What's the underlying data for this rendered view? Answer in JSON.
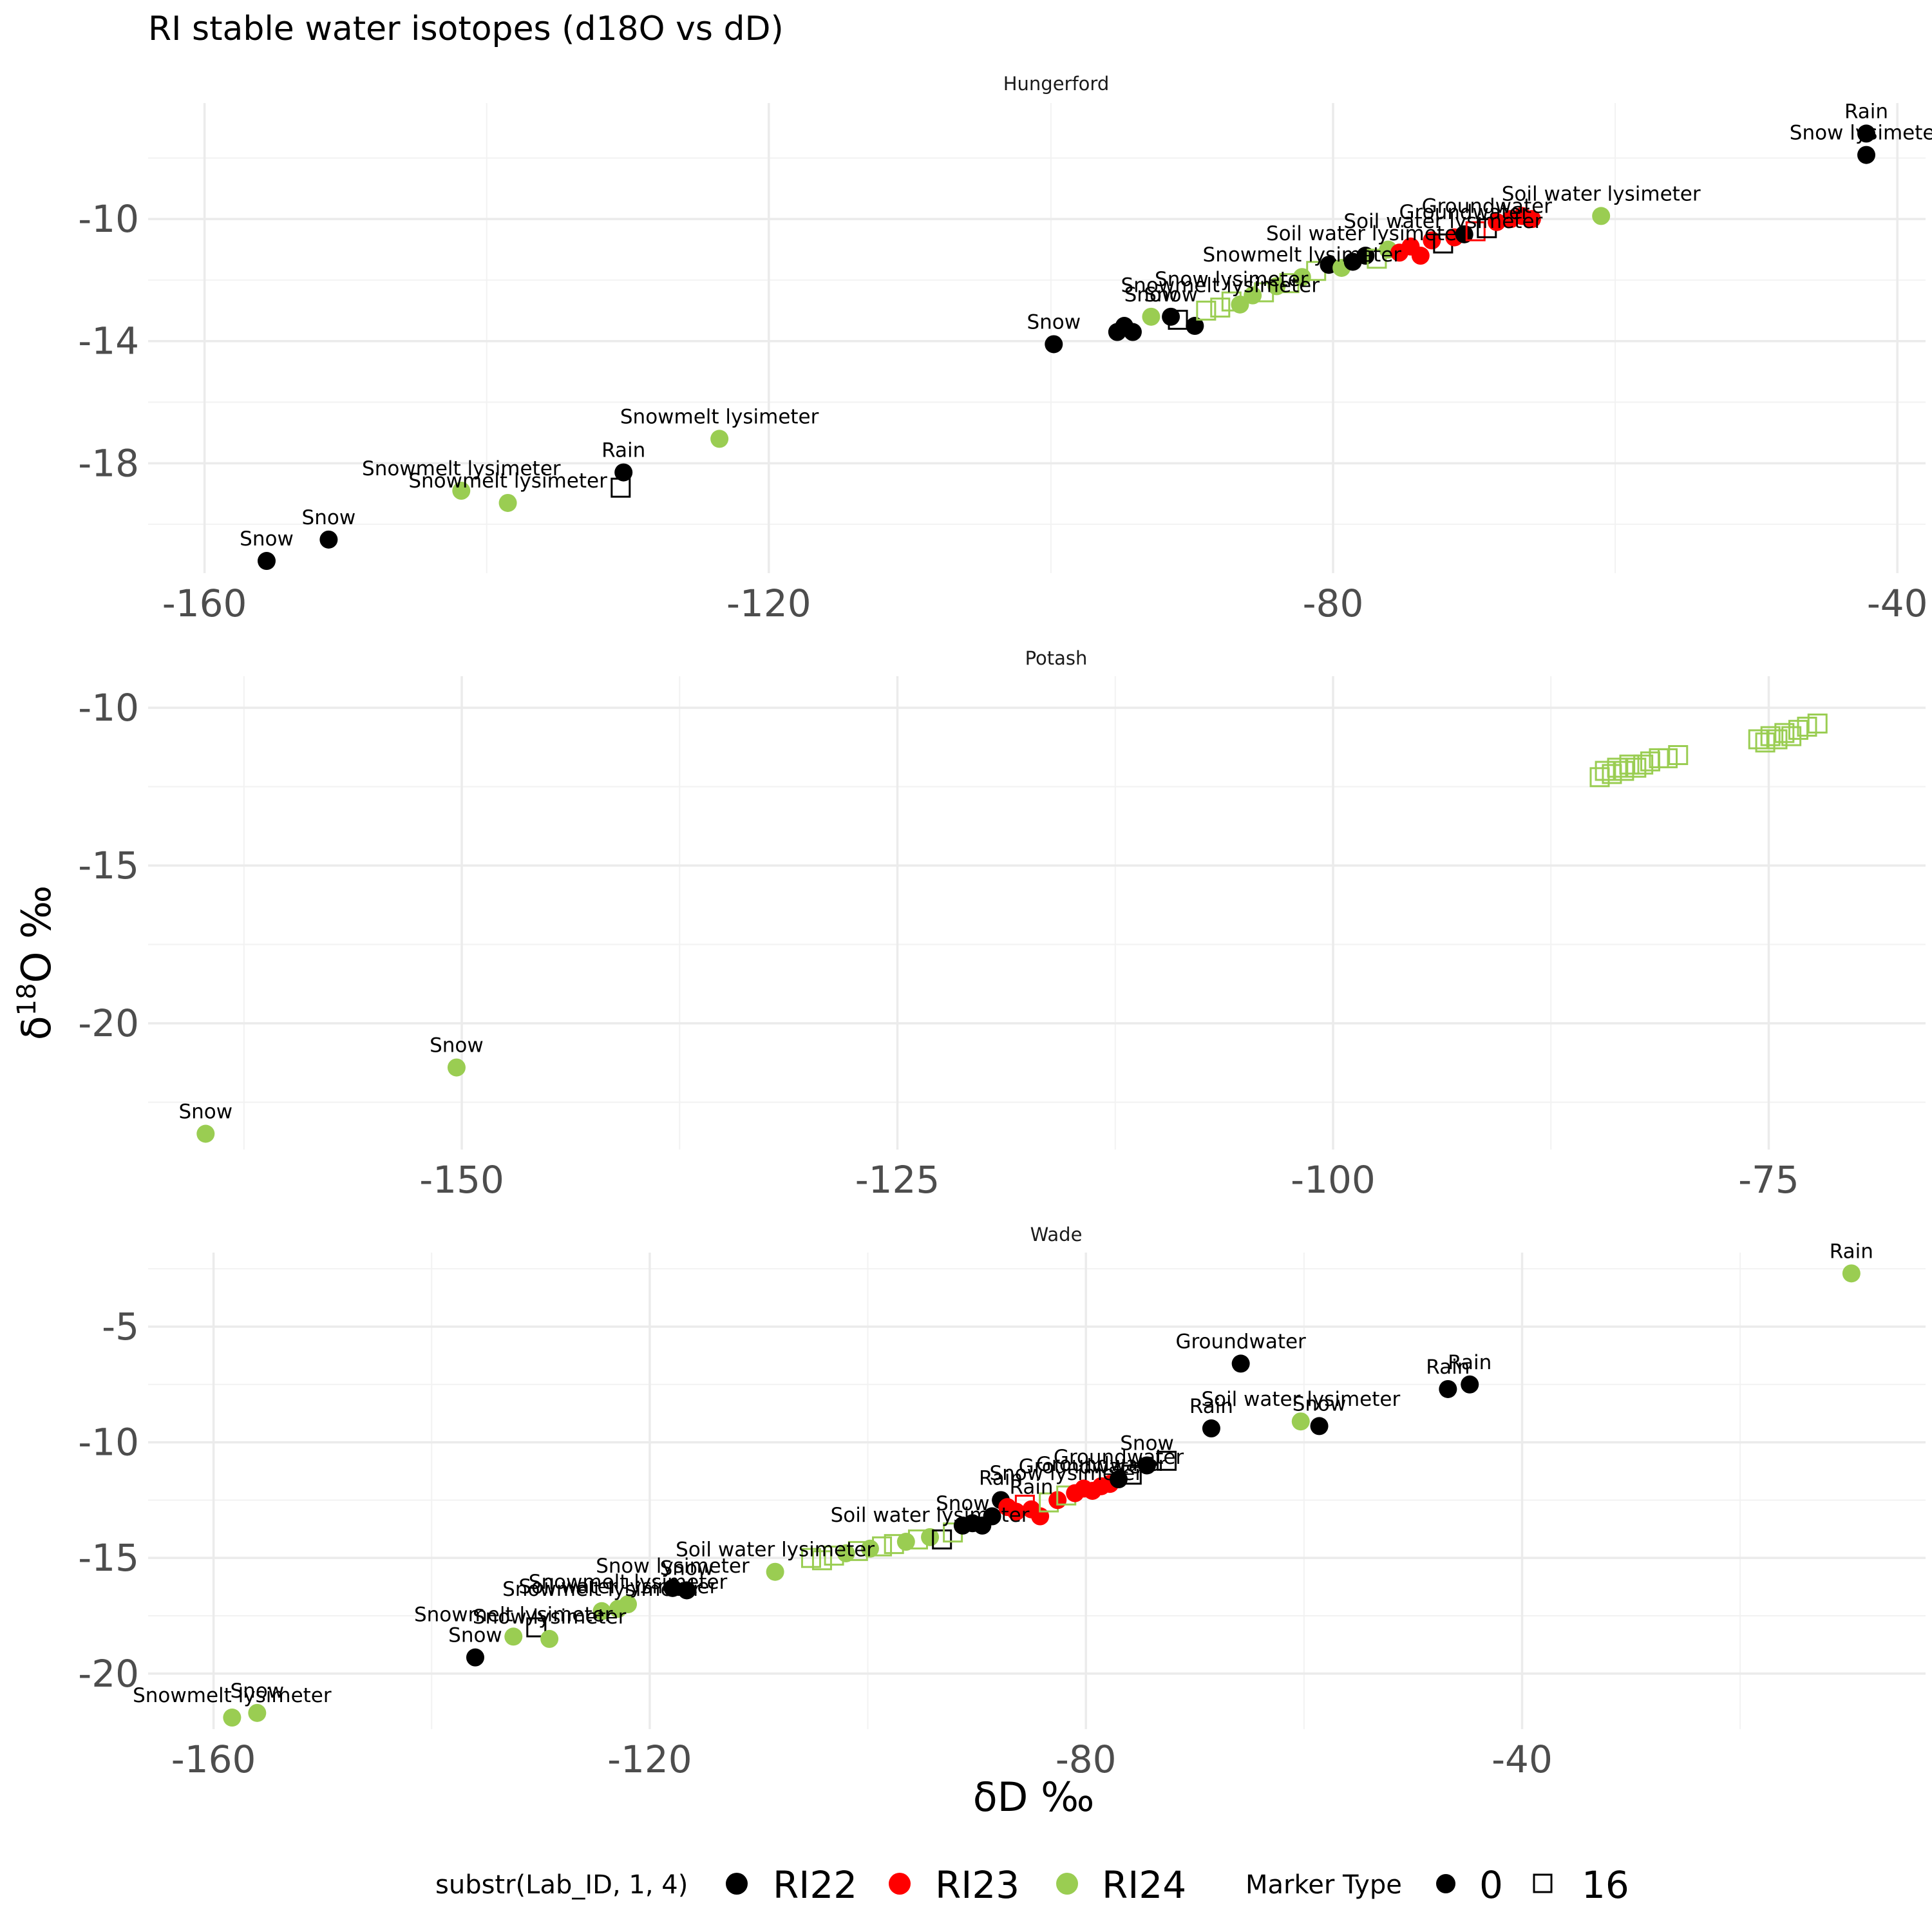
{
  "colors": {
    "RI22": "#000000",
    "RI23": "#ff0000",
    "RI24": "#9acd52"
  },
  "chart_data": {
    "type": "scatter",
    "title": "RI stable water isotopes (d18O vs dD)",
    "xlabel": "δD ‰",
    "ylabel_base": "δ",
    "ylabel_sup": "18",
    "ylabel_rest": "O ‰",
    "legend": {
      "position": "bottom",
      "color_title": "substr(Lab_ID, 1, 4)",
      "color_entries": [
        "RI22",
        "RI23",
        "RI24"
      ],
      "shape_title": "Marker Type",
      "shape_entries": [
        {
          "label": "0",
          "shape": "circle"
        },
        {
          "label": "16",
          "shape": "square"
        }
      ]
    },
    "panels": [
      {
        "name": "Hungerford",
        "xlim": [
          -164,
          -38
        ],
        "ylim": [
          -21.6,
          -6.2
        ],
        "xticks": [
          -160,
          -120,
          -80,
          -40
        ],
        "xminor": [
          -140,
          -100,
          -60
        ],
        "yticks": [
          -10,
          -14,
          -18
        ],
        "yminor": [
          -8,
          -12,
          -16,
          -20
        ],
        "points": [
          {
            "x": -155.6,
            "y": -21.2,
            "g": "RI22",
            "s": "c",
            "label": "Snow"
          },
          {
            "x": -151.2,
            "y": -20.5,
            "g": "RI22",
            "s": "c",
            "label": "Snow"
          },
          {
            "x": -141.8,
            "y": -18.9,
            "g": "RI24",
            "s": "c",
            "label": "Snowmelt lysimeter"
          },
          {
            "x": -138.5,
            "y": -19.3,
            "g": "RI24",
            "s": "c",
            "label": "Snowmelt lysimeter"
          },
          {
            "x": -130.3,
            "y": -18.3,
            "g": "RI22",
            "s": "c",
            "label": "Rain"
          },
          {
            "x": -130.5,
            "y": -18.8,
            "g": "RI22",
            "s": "s"
          },
          {
            "x": -123.5,
            "y": -17.2,
            "g": "RI24",
            "s": "c",
            "label": "Snowmelt lysimeter"
          },
          {
            "x": -99.8,
            "y": -14.1,
            "g": "RI22",
            "s": "c",
            "label": "Snow"
          },
          {
            "x": -95.3,
            "y": -13.7,
            "g": "RI22",
            "s": "c"
          },
          {
            "x": -94.8,
            "y": -13.5,
            "g": "RI22",
            "s": "c"
          },
          {
            "x": -94.2,
            "y": -13.7,
            "g": "RI22",
            "s": "c"
          },
          {
            "x": -92.9,
            "y": -13.2,
            "g": "RI24",
            "s": "c",
            "label": "Snow"
          },
          {
            "x": -91.5,
            "y": -13.2,
            "g": "RI22",
            "s": "c",
            "label": "Snow"
          },
          {
            "x": -91.0,
            "y": -13.3,
            "g": "RI22",
            "s": "s"
          },
          {
            "x": -89.8,
            "y": -13.5,
            "g": "RI22",
            "s": "c"
          },
          {
            "x": -89.0,
            "y": -13.0,
            "g": "RI24",
            "s": "s"
          },
          {
            "x": -88.0,
            "y": -12.9,
            "g": "RI24",
            "s": "s",
            "label": "Snowmelt lysimeter"
          },
          {
            "x": -87.2,
            "y": -12.7,
            "g": "RI24",
            "s": "s",
            "label": "Snow lysimeter"
          },
          {
            "x": -86.6,
            "y": -12.8,
            "g": "RI24",
            "s": "c"
          },
          {
            "x": -85.7,
            "y": -12.5,
            "g": "RI24",
            "s": "c"
          },
          {
            "x": -84.9,
            "y": -12.4,
            "g": "RI24",
            "s": "s"
          },
          {
            "x": -84.0,
            "y": -12.2,
            "g": "RI24",
            "s": "c"
          },
          {
            "x": -83.1,
            "y": -12.1,
            "g": "RI24",
            "s": "s"
          },
          {
            "x": -82.2,
            "y": -11.9,
            "g": "RI24",
            "s": "c",
            "label": "Snowmelt lysimeter"
          },
          {
            "x": -81.2,
            "y": -11.7,
            "g": "RI24",
            "s": "s"
          },
          {
            "x": -80.3,
            "y": -11.5,
            "g": "RI22",
            "s": "c"
          },
          {
            "x": -79.4,
            "y": -11.6,
            "g": "RI24",
            "s": "c"
          },
          {
            "x": -78.6,
            "y": -11.4,
            "g": "RI22",
            "s": "c"
          },
          {
            "x": -77.7,
            "y": -11.2,
            "g": "RI22",
            "s": "c",
            "label": "Soil water lysimeter"
          },
          {
            "x": -76.9,
            "y": -11.3,
            "g": "RI24",
            "s": "s"
          },
          {
            "x": -76.1,
            "y": -11.0,
            "g": "RI24",
            "s": "c"
          },
          {
            "x": -75.3,
            "y": -11.1,
            "g": "RI23",
            "s": "c"
          },
          {
            "x": -74.5,
            "y": -10.9,
            "g": "RI23",
            "s": "c"
          },
          {
            "x": -73.8,
            "y": -11.2,
            "g": "RI23",
            "s": "c"
          },
          {
            "x": -73.0,
            "y": -10.7,
            "g": "RI23",
            "s": "c"
          },
          {
            "x": -72.2,
            "y": -10.8,
            "g": "RI22",
            "s": "s",
            "label": "Soil water lysimeter"
          },
          {
            "x": -71.4,
            "y": -10.6,
            "g": "RI23",
            "s": "c"
          },
          {
            "x": -70.7,
            "y": -10.5,
            "g": "RI22",
            "s": "c",
            "label": "Groundwater"
          },
          {
            "x": -69.9,
            "y": -10.4,
            "g": "RI23",
            "s": "s"
          },
          {
            "x": -69.1,
            "y": -10.3,
            "g": "RI22",
            "s": "s",
            "label": "Groundwater"
          },
          {
            "x": -68.4,
            "y": -10.1,
            "g": "RI23",
            "s": "c"
          },
          {
            "x": -67.4,
            "y": -10.0,
            "g": "RI23",
            "s": "c"
          },
          {
            "x": -66.6,
            "y": -9.9,
            "g": "RI23",
            "s": "c"
          },
          {
            "x": -65.9,
            "y": -10.0,
            "g": "RI23",
            "s": "c"
          },
          {
            "x": -61.0,
            "y": -9.9,
            "g": "RI24",
            "s": "c",
            "label": "Soil water lysimeter"
          },
          {
            "x": -42.2,
            "y": -7.2,
            "g": "RI22",
            "s": "c",
            "label": "Rain"
          },
          {
            "x": -42.2,
            "y": -7.9,
            "g": "RI22",
            "s": "c",
            "label": "Snow lysimeter"
          }
        ]
      },
      {
        "name": "Potash",
        "xlim": [
          -168,
          -66
        ],
        "ylim": [
          -24.0,
          -9.0
        ],
        "xticks": [
          -150,
          -125,
          -100,
          -75
        ],
        "xminor": [
          -162.5,
          -137.5,
          -112.5,
          -87.5
        ],
        "yticks": [
          -10,
          -15,
          -20
        ],
        "yminor": [
          -12.5,
          -17.5,
          -22.5
        ],
        "points": [
          {
            "x": -164.7,
            "y": -23.5,
            "g": "RI24",
            "s": "c",
            "label": "Snow"
          },
          {
            "x": -150.3,
            "y": -21.4,
            "g": "RI24",
            "s": "c",
            "label": "Snow"
          },
          {
            "x": -84.7,
            "y": -12.2,
            "g": "RI24",
            "s": "s"
          },
          {
            "x": -84.4,
            "y": -12.0,
            "g": "RI24",
            "s": "s"
          },
          {
            "x": -84.0,
            "y": -12.1,
            "g": "RI24",
            "s": "s"
          },
          {
            "x": -83.7,
            "y": -11.9,
            "g": "RI24",
            "s": "s"
          },
          {
            "x": -83.3,
            "y": -12.0,
            "g": "RI24",
            "s": "s"
          },
          {
            "x": -83.0,
            "y": -11.8,
            "g": "RI24",
            "s": "s"
          },
          {
            "x": -82.6,
            "y": -11.9,
            "g": "RI24",
            "s": "s"
          },
          {
            "x": -82.2,
            "y": -11.8,
            "g": "RI24",
            "s": "s"
          },
          {
            "x": -81.8,
            "y": -11.7,
            "g": "RI24",
            "s": "s"
          },
          {
            "x": -81.3,
            "y": -11.6,
            "g": "RI24",
            "s": "s"
          },
          {
            "x": -80.8,
            "y": -11.6,
            "g": "RI24",
            "s": "s"
          },
          {
            "x": -80.2,
            "y": -11.5,
            "g": "RI24",
            "s": "s"
          },
          {
            "x": -75.6,
            "y": -11.0,
            "g": "RI24",
            "s": "s"
          },
          {
            "x": -75.2,
            "y": -11.1,
            "g": "RI24",
            "s": "s"
          },
          {
            "x": -74.9,
            "y": -10.9,
            "g": "RI24",
            "s": "s"
          },
          {
            "x": -74.5,
            "y": -11.0,
            "g": "RI24",
            "s": "s"
          },
          {
            "x": -74.1,
            "y": -10.8,
            "g": "RI24",
            "s": "s"
          },
          {
            "x": -73.7,
            "y": -10.9,
            "g": "RI24",
            "s": "s"
          },
          {
            "x": -73.3,
            "y": -10.7,
            "g": "RI24",
            "s": "s"
          },
          {
            "x": -72.8,
            "y": -10.6,
            "g": "RI24",
            "s": "s"
          },
          {
            "x": -72.2,
            "y": -10.5,
            "g": "RI24",
            "s": "s"
          }
        ]
      },
      {
        "name": "Wade",
        "xlim": [
          -166,
          -3
        ],
        "ylim": [
          -22.4,
          -1.8
        ],
        "xticks": [
          -160,
          -120,
          -80,
          -40
        ],
        "xminor": [
          -140,
          -100,
          -60,
          -20
        ],
        "yticks": [
          -5,
          -10,
          -15,
          -20
        ],
        "yminor": [
          -2.5,
          -7.5,
          -12.5,
          -17.5
        ],
        "points": [
          {
            "x": -158.3,
            "y": -21.9,
            "g": "RI24",
            "s": "c",
            "label": "Snowmelt lysimeter"
          },
          {
            "x": -156.0,
            "y": -21.7,
            "g": "RI24",
            "s": "c",
            "label": "Snow"
          },
          {
            "x": -136.0,
            "y": -19.3,
            "g": "RI22",
            "s": "c",
            "label": "Snow"
          },
          {
            "x": -132.5,
            "y": -18.4,
            "g": "RI24",
            "s": "c",
            "label": "Snowmelt lysimeter"
          },
          {
            "x": -130.4,
            "y": -18.0,
            "g": "RI22",
            "s": "s"
          },
          {
            "x": -129.2,
            "y": -18.5,
            "g": "RI24",
            "s": "c",
            "label": "Snow lysimeter"
          },
          {
            "x": -124.4,
            "y": -17.3,
            "g": "RI24",
            "s": "c",
            "label": "Snowmelt lysimeter"
          },
          {
            "x": -122.9,
            "y": -17.2,
            "g": "RI24",
            "s": "c",
            "label": "Soil water lysimeter"
          },
          {
            "x": -122.0,
            "y": -17.0,
            "g": "RI24",
            "s": "c",
            "label": "Snowmelt lysimeter"
          },
          {
            "x": -117.9,
            "y": -16.3,
            "g": "RI22",
            "s": "c",
            "label": "Snow lysimeter"
          },
          {
            "x": -116.6,
            "y": -16.4,
            "g": "RI22",
            "s": "c",
            "label": "Snow"
          },
          {
            "x": -108.5,
            "y": -15.6,
            "g": "RI24",
            "s": "c",
            "label": "Soil water lysimeter"
          },
          {
            "x": -105.2,
            "y": -15.0,
            "g": "RI24",
            "s": "s"
          },
          {
            "x": -104.2,
            "y": -15.1,
            "g": "RI24",
            "s": "s"
          },
          {
            "x": -103.1,
            "y": -14.9,
            "g": "RI24",
            "s": "s"
          },
          {
            "x": -102.0,
            "y": -14.8,
            "g": "RI24",
            "s": "c"
          },
          {
            "x": -100.9,
            "y": -14.7,
            "g": "RI24",
            "s": "s"
          },
          {
            "x": -99.8,
            "y": -14.6,
            "g": "RI24",
            "s": "c"
          },
          {
            "x": -98.7,
            "y": -14.5,
            "g": "RI24",
            "s": "s"
          },
          {
            "x": -97.6,
            "y": -14.4,
            "g": "RI24",
            "s": "s"
          },
          {
            "x": -96.5,
            "y": -14.3,
            "g": "RI24",
            "s": "c"
          },
          {
            "x": -95.4,
            "y": -14.2,
            "g": "RI24",
            "s": "s"
          },
          {
            "x": -94.3,
            "y": -14.1,
            "g": "RI24",
            "s": "c",
            "label": "Soil water lysimeter"
          },
          {
            "x": -93.2,
            "y": -14.2,
            "g": "RI22",
            "s": "s"
          },
          {
            "x": -92.2,
            "y": -13.9,
            "g": "RI24",
            "s": "s"
          },
          {
            "x": -91.3,
            "y": -13.6,
            "g": "RI22",
            "s": "c",
            "label": "Snow"
          },
          {
            "x": -90.4,
            "y": -13.5,
            "g": "RI22",
            "s": "c"
          },
          {
            "x": -89.5,
            "y": -13.6,
            "g": "RI22",
            "s": "c"
          },
          {
            "x": -88.6,
            "y": -13.2,
            "g": "RI22",
            "s": "c"
          },
          {
            "x": -87.8,
            "y": -12.5,
            "g": "RI22",
            "s": "c",
            "label": "Rain"
          },
          {
            "x": -87.2,
            "y": -12.8,
            "g": "RI23",
            "s": "c"
          },
          {
            "x": -86.4,
            "y": -13.0,
            "g": "RI23",
            "s": "c"
          },
          {
            "x": -85.6,
            "y": -12.7,
            "g": "RI23",
            "s": "s"
          },
          {
            "x": -85.0,
            "y": -12.9,
            "g": "RI23",
            "s": "c",
            "label": "Rain"
          },
          {
            "x": -84.2,
            "y": -13.2,
            "g": "RI23",
            "s": "c"
          },
          {
            "x": -83.4,
            "y": -12.6,
            "g": "RI24",
            "s": "s"
          },
          {
            "x": -82.6,
            "y": -12.5,
            "g": "RI23",
            "s": "c"
          },
          {
            "x": -81.8,
            "y": -12.3,
            "g": "RI24",
            "s": "s",
            "label": "Snow lysimeter"
          },
          {
            "x": -81.0,
            "y": -12.2,
            "g": "RI23",
            "s": "c"
          },
          {
            "x": -80.2,
            "y": -12.0,
            "g": "RI23",
            "s": "c",
            "label": "Groundwater"
          },
          {
            "x": -79.4,
            "y": -12.1,
            "g": "RI23",
            "s": "c"
          },
          {
            "x": -78.6,
            "y": -11.9,
            "g": "RI23",
            "s": "c",
            "label": "Groundwater"
          },
          {
            "x": -77.8,
            "y": -11.8,
            "g": "RI23",
            "s": "c"
          },
          {
            "x": -77.0,
            "y": -11.6,
            "g": "RI22",
            "s": "c",
            "label": "Groundwater"
          },
          {
            "x": -75.8,
            "y": -11.4,
            "g": "RI22",
            "s": "s"
          },
          {
            "x": -74.4,
            "y": -11.0,
            "g": "RI22",
            "s": "c",
            "label": "Snow"
          },
          {
            "x": -72.6,
            "y": -10.8,
            "g": "RI22",
            "s": "s"
          },
          {
            "x": -68.5,
            "y": -9.4,
            "g": "RI22",
            "s": "c",
            "label": "Rain"
          },
          {
            "x": -65.8,
            "y": -6.6,
            "g": "RI22",
            "s": "c",
            "label": "Groundwater"
          },
          {
            "x": -60.3,
            "y": -9.1,
            "g": "RI24",
            "s": "c",
            "label": "Soil water lysimeter"
          },
          {
            "x": -58.6,
            "y": -9.3,
            "g": "RI22",
            "s": "c",
            "label": "Snow"
          },
          {
            "x": -46.8,
            "y": -7.7,
            "g": "RI22",
            "s": "c",
            "label": "Rain"
          },
          {
            "x": -44.8,
            "y": -7.5,
            "g": "RI22",
            "s": "c",
            "label": "Rain"
          },
          {
            "x": -9.8,
            "y": -2.7,
            "g": "RI24",
            "s": "c",
            "label": "Rain"
          }
        ]
      }
    ]
  }
}
